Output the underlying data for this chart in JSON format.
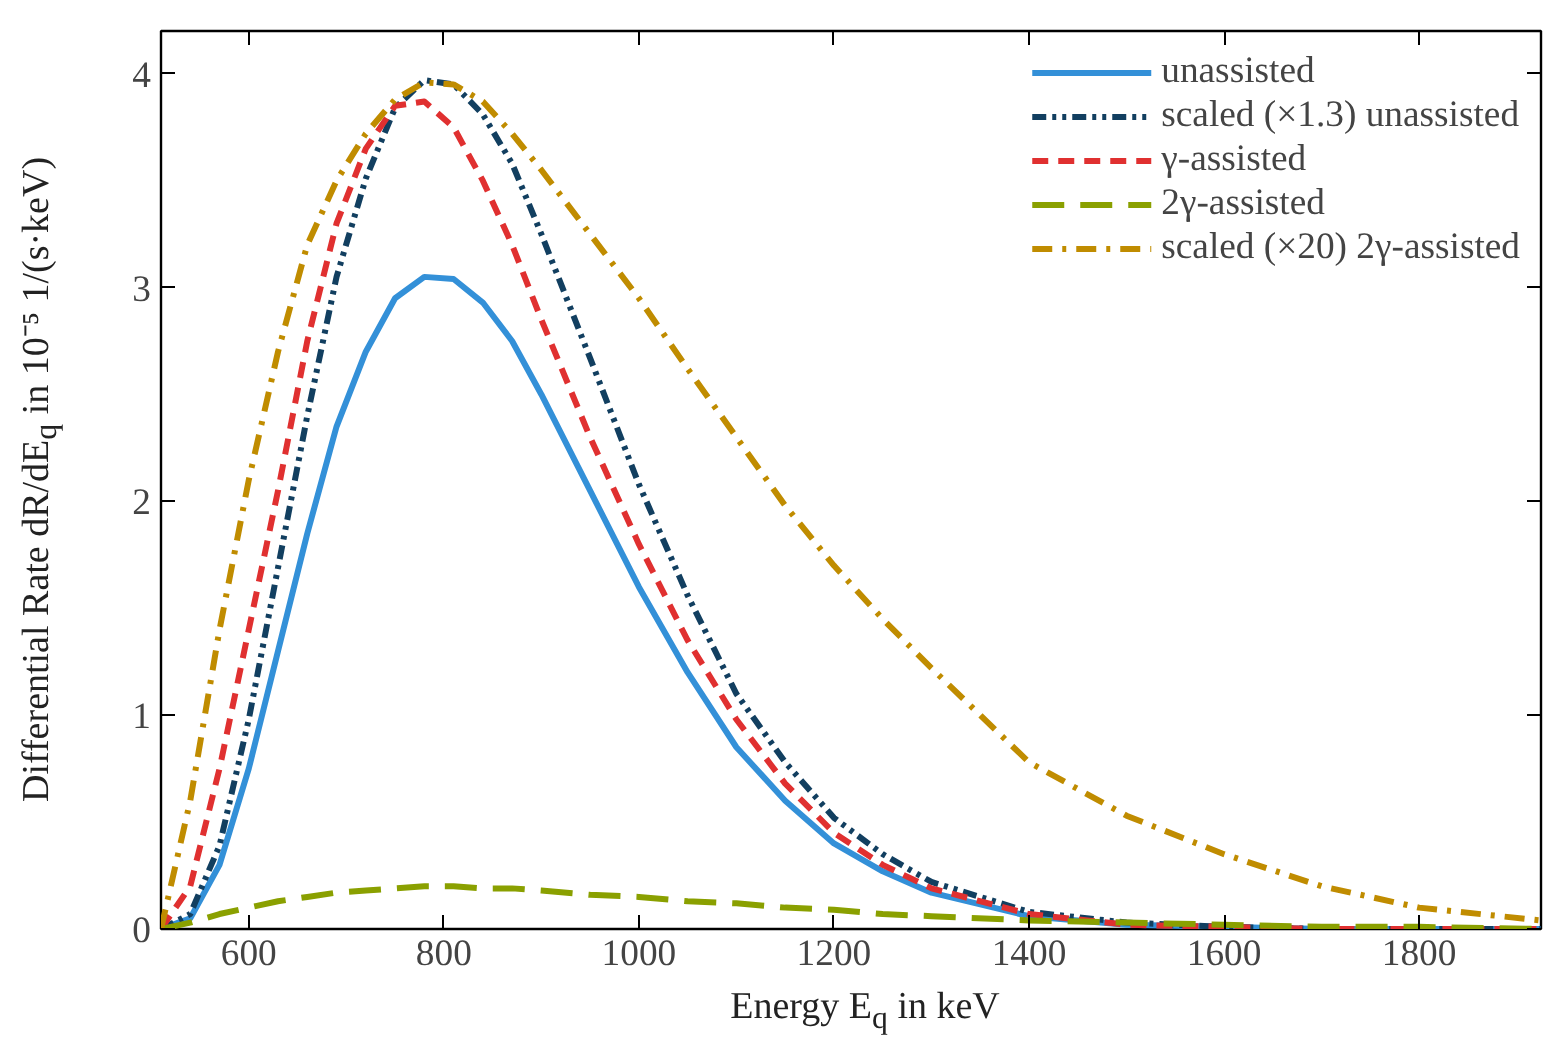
{
  "chart_data": {
    "type": "line",
    "xlabel": "Energy E$_{q}$ in keV",
    "ylabel": "Differential Rate dR/dE$_{q}$ in 10⁻⁵ 1/(s·keV)",
    "x": [
      510,
      540,
      570,
      600,
      630,
      660,
      690,
      720,
      750,
      780,
      810,
      840,
      870,
      900,
      950,
      1000,
      1050,
      1100,
      1150,
      1200,
      1250,
      1300,
      1400,
      1500,
      1600,
      1700,
      1800,
      1925
    ],
    "series": [
      {
        "name": "unassisted",
        "color": "#3390d8",
        "line_style": "solid",
        "values": [
          0,
          0.05,
          0.3,
          0.75,
          1.3,
          1.85,
          2.35,
          2.7,
          2.95,
          3.05,
          3.04,
          2.93,
          2.75,
          2.5,
          2.05,
          1.6,
          1.2,
          0.85,
          0.6,
          0.4,
          0.27,
          0.17,
          0.06,
          0.02,
          0.01,
          0,
          0,
          0
        ]
      },
      {
        "name": "scaled (×1.3) unassisted",
        "color": "#123f60",
        "line_style": "dotted",
        "values": [
          0,
          0.07,
          0.39,
          0.98,
          1.69,
          2.4,
          3.05,
          3.51,
          3.84,
          3.97,
          3.95,
          3.81,
          3.58,
          3.25,
          2.67,
          2.08,
          1.56,
          1.1,
          0.78,
          0.52,
          0.35,
          0.22,
          0.08,
          0.03,
          0.01,
          0,
          0,
          0
        ]
      },
      {
        "name": "γ-assisted",
        "color": "#e03030",
        "line_style": "dashed",
        "values": [
          0,
          0.2,
          0.75,
          1.4,
          2.05,
          2.75,
          3.3,
          3.65,
          3.85,
          3.87,
          3.75,
          3.5,
          3.2,
          2.85,
          2.3,
          1.8,
          1.35,
          0.98,
          0.68,
          0.45,
          0.3,
          0.19,
          0.07,
          0.02,
          0.01,
          0,
          0,
          0
        ]
      },
      {
        "name": "2γ-assisted",
        "color": "#8aa000",
        "line_style": "longdash",
        "values": [
          0,
          0.03,
          0.07,
          0.1,
          0.13,
          0.15,
          0.17,
          0.18,
          0.19,
          0.2,
          0.2,
          0.19,
          0.19,
          0.18,
          0.16,
          0.15,
          0.13,
          0.12,
          0.1,
          0.09,
          0.07,
          0.06,
          0.04,
          0.03,
          0.02,
          0.01,
          0.01,
          0
        ]
      },
      {
        "name": "scaled (×20) 2γ-assisted",
        "color": "#c08c00",
        "line_style": "dashdot",
        "values": [
          0,
          0.6,
          1.4,
          2.1,
          2.7,
          3.2,
          3.5,
          3.72,
          3.88,
          3.96,
          3.95,
          3.87,
          3.72,
          3.55,
          3.25,
          2.95,
          2.62,
          2.3,
          1.98,
          1.7,
          1.45,
          1.22,
          0.78,
          0.53,
          0.35,
          0.2,
          0.1,
          0.04
        ]
      }
    ],
    "xlim": [
      510,
      1925
    ],
    "ylim": [
      0,
      4.2
    ],
    "xticks": [
      600,
      800,
      1000,
      1200,
      1400,
      1600,
      1800
    ],
    "yticks": [
      0,
      1,
      2,
      3,
      4
    ],
    "grid": false,
    "legend": "top right"
  }
}
